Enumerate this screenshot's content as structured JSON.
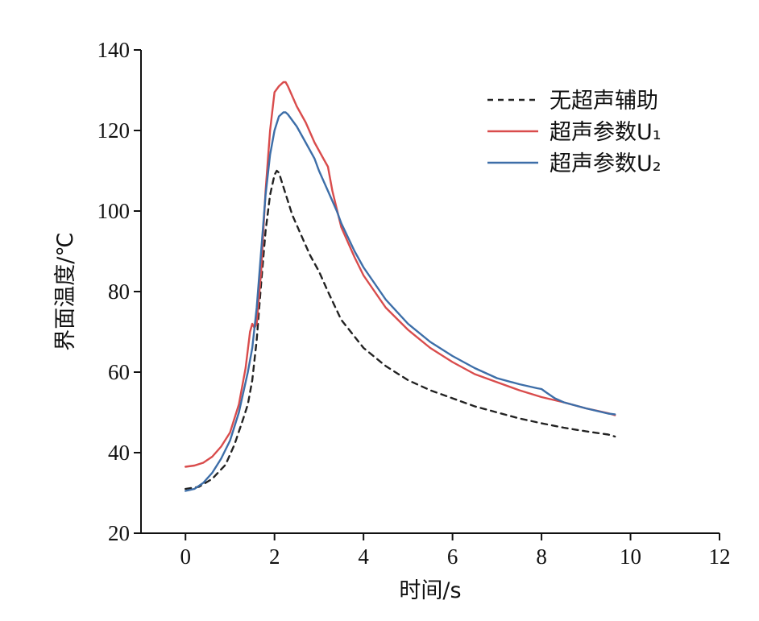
{
  "chart_data": {
    "type": "line",
    "xlabel": "时间/s",
    "ylabel": "界面温度/℃",
    "xlim": [
      -1,
      12
    ],
    "ylim": [
      20,
      140
    ],
    "xticks": [
      0,
      2,
      4,
      6,
      8,
      10,
      12
    ],
    "yticks": [
      20,
      40,
      60,
      80,
      100,
      120,
      140
    ],
    "grid": false,
    "legend_position": "top-right",
    "series": [
      {
        "name": "无超声辅助",
        "color": "#222222",
        "dash": "dashed",
        "x": [
          0,
          0.3,
          0.6,
          0.9,
          1.1,
          1.3,
          1.4,
          1.5,
          1.6,
          1.7,
          1.8,
          1.9,
          2.0,
          2.05,
          2.1,
          2.2,
          2.4,
          2.6,
          2.8,
          3.0,
          3.2,
          3.5,
          4.0,
          4.5,
          5.0,
          5.5,
          6.0,
          6.5,
          7.0,
          7.5,
          8.0,
          8.5,
          9.0,
          9.5,
          9.65
        ],
        "y": [
          31,
          31.5,
          33.5,
          37,
          42,
          48.5,
          52,
          58,
          68,
          82,
          95,
          104,
          109,
          110,
          109.5,
          106,
          99,
          94,
          89,
          85,
          80,
          73,
          66,
          61.5,
          58,
          55.5,
          53.5,
          51.5,
          50,
          48.5,
          47.3,
          46.2,
          45.3,
          44.5,
          44
        ]
      },
      {
        "name": "超声参数U₁",
        "color": "#d94c4c",
        "dash": "solid",
        "x": [
          0,
          0.2,
          0.4,
          0.6,
          0.8,
          1.0,
          1.2,
          1.35,
          1.45,
          1.5,
          1.55,
          1.6,
          1.7,
          1.8,
          1.9,
          2.0,
          2.1,
          2.2,
          2.25,
          2.3,
          2.5,
          2.7,
          2.9,
          3.1,
          3.2,
          3.3,
          3.5,
          3.8,
          4.0,
          4.5,
          5.0,
          5.5,
          6.0,
          6.5,
          7.0,
          7.5,
          8.0,
          8.5,
          9.0,
          9.5,
          9.65
        ],
        "y": [
          36.5,
          36.8,
          37.5,
          39,
          41.5,
          45,
          52,
          61,
          70,
          72,
          71,
          72,
          85,
          105,
          120,
          129.5,
          131,
          132,
          132,
          131,
          126,
          122,
          117,
          113,
          111,
          105,
          96,
          88.5,
          84,
          76,
          70.5,
          66,
          62.5,
          59.5,
          57.5,
          55.5,
          53.8,
          52.5,
          51,
          49.8,
          49.3
        ]
      },
      {
        "name": "超声参数U₂",
        "color": "#3d6ea8",
        "dash": "solid",
        "x": [
          0,
          0.2,
          0.4,
          0.6,
          0.8,
          1.0,
          1.2,
          1.4,
          1.5,
          1.6,
          1.7,
          1.8,
          1.9,
          2.0,
          2.1,
          2.2,
          2.25,
          2.3,
          2.5,
          2.7,
          2.9,
          3.0,
          3.2,
          3.4,
          3.5,
          3.8,
          4.0,
          4.5,
          5.0,
          5.5,
          6.0,
          6.5,
          7.0,
          7.5,
          7.9,
          8.0,
          8.1,
          8.3,
          8.5,
          9.0,
          9.5,
          9.65
        ],
        "y": [
          30.5,
          31,
          32.5,
          35,
          38.5,
          43,
          50,
          60,
          66,
          76,
          90,
          104,
          114,
          120,
          123.5,
          124.5,
          124.5,
          124,
          121,
          117,
          113,
          110,
          105,
          100,
          97,
          90,
          86,
          78,
          72,
          67.5,
          64,
          61,
          58.5,
          57,
          56,
          55.8,
          55,
          53.5,
          52.5,
          51,
          49.7,
          49.5
        ]
      }
    ]
  }
}
